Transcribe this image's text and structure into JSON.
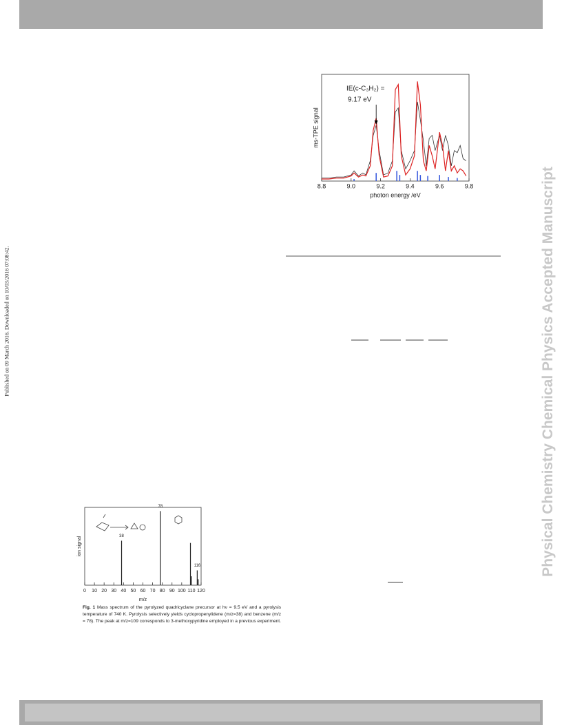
{
  "page": {
    "side_note": "Published on 09 March 2016. Downloaded on 10/03/2016 07:08:42.",
    "watermark": "Physical Chemistry Chemical Physics Accepted Manuscript",
    "fig1_caption_label": "Fig. 1",
    "fig1_caption": "Mass spectrum of the pyrolyzed quadricyclane precursor at hν = 9.5 eV and a pyrolysis temperature of 740 K. Pyrolysis selectively yields cyclopropenylidene (m/z=38) and benzene (m/z = 78). The peak at m/z=109 corresponds to 3-methoxypyridine employed in a previous experiment."
  },
  "chart_data": [
    {
      "type": "line",
      "xlabel": "photon energy /eV",
      "ylabel": "ms-TPE signal",
      "annotations": [
        "IE(c-C₃H₂) =",
        "9.17 eV"
      ],
      "annotation_x": 9.17,
      "xlim": [
        8.8,
        9.8
      ],
      "ylim": [
        0,
        1.05
      ],
      "xticks": [
        8.8,
        {
          "value": 9,
          "label": "9.0"
        },
        9.2,
        9.4,
        9.6,
        9.8
      ],
      "series": [
        {
          "color": "#3355dd",
          "style": "stick",
          "x": [
            9.02,
            9.17,
            9.31,
            9.33,
            9.45,
            9.47,
            9.52,
            9.6,
            9.66,
            9.72
          ],
          "values": [
            0.02,
            0.08,
            0.1,
            0.06,
            0.1,
            0.06,
            0.05,
            0.06,
            0.04,
            0.03
          ]
        },
        {
          "color": "#333333",
          "style": "line",
          "x": [
            8.8,
            8.85,
            8.9,
            8.95,
            9.0,
            9.02,
            9.05,
            9.08,
            9.1,
            9.13,
            9.15,
            9.17,
            9.19,
            9.22,
            9.25,
            9.28,
            9.3,
            9.32,
            9.34,
            9.37,
            9.4,
            9.43,
            9.45,
            9.47,
            9.49,
            9.51,
            9.53,
            9.55,
            9.57,
            9.6,
            9.62,
            9.64,
            9.66,
            9.68,
            9.7,
            9.72,
            9.74,
            9.76,
            9.78
          ],
          "values": [
            0.03,
            0.03,
            0.04,
            0.04,
            0.06,
            0.1,
            0.05,
            0.08,
            0.06,
            0.2,
            0.45,
            0.55,
            0.3,
            0.06,
            0.08,
            0.2,
            0.68,
            0.72,
            0.3,
            0.12,
            0.2,
            0.3,
            0.78,
            0.6,
            0.4,
            0.15,
            0.42,
            0.45,
            0.3,
            0.45,
            0.3,
            0.45,
            0.35,
            0.15,
            0.3,
            0.28,
            0.35,
            0.22,
            0.2
          ]
        },
        {
          "color": "#dd2222",
          "style": "line",
          "x": [
            8.8,
            8.85,
            8.9,
            8.95,
            9.0,
            9.02,
            9.05,
            9.08,
            9.1,
            9.13,
            9.15,
            9.17,
            9.19,
            9.22,
            9.25,
            9.28,
            9.3,
            9.32,
            9.34,
            9.37,
            9.4,
            9.43,
            9.45,
            9.47,
            9.49,
            9.51,
            9.53,
            9.55,
            9.57,
            9.6,
            9.62,
            9.64,
            9.66,
            9.68,
            9.7,
            9.72,
            9.74,
            9.76,
            9.78
          ],
          "values": [
            0.02,
            0.02,
            0.03,
            0.03,
            0.05,
            0.08,
            0.04,
            0.06,
            0.05,
            0.15,
            0.5,
            0.62,
            0.25,
            0.04,
            0.05,
            0.15,
            0.9,
            0.95,
            0.25,
            0.06,
            0.12,
            0.25,
            0.98,
            0.75,
            0.2,
            0.1,
            0.35,
            0.25,
            0.12,
            0.48,
            0.35,
            0.1,
            0.3,
            0.1,
            0.15,
            0.08,
            0.12,
            0.1,
            0.05
          ]
        }
      ]
    },
    {
      "type": "stick",
      "xlabel": "m/z",
      "ylabel": "ion signal",
      "xlim": [
        0,
        120
      ],
      "ylim": [
        0,
        1.05
      ],
      "xticks": [
        0,
        10,
        20,
        30,
        40,
        50,
        60,
        70,
        80,
        90,
        100,
        110,
        120
      ],
      "peak_labels": [
        {
          "text": "38",
          "x": 38
        },
        {
          "text": "78",
          "x": 78
        },
        {
          "text": "116",
          "x": 116
        }
      ],
      "series": [
        {
          "color": "#222222",
          "style": "stick",
          "x": [
            38,
            78,
            109,
            110,
            116,
            117
          ],
          "values": [
            0.6,
            1.0,
            0.57,
            0.12,
            0.2,
            0.08
          ]
        }
      ]
    }
  ]
}
